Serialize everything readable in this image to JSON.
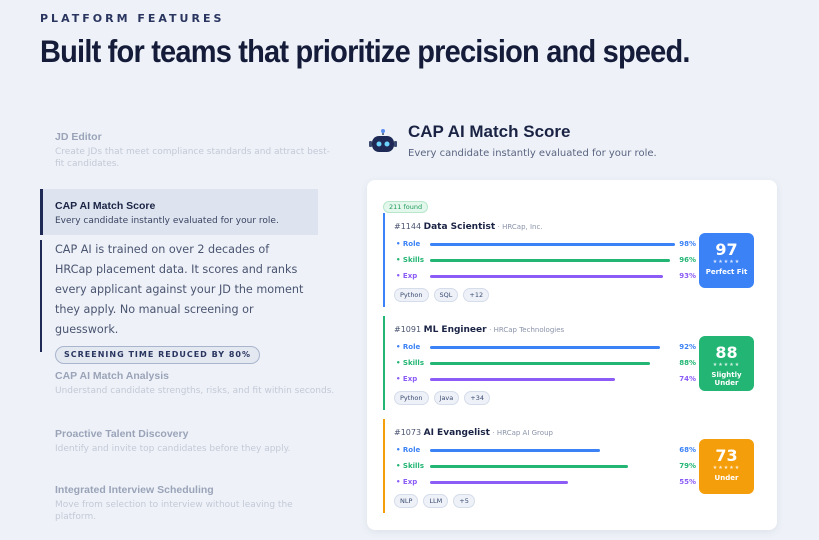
{
  "header": {
    "eyebrow": "PLATFORM FEATURES",
    "title": "Built for teams that prioritize precision and speed."
  },
  "features": [
    {
      "title": "JD Editor",
      "description": "Create JDs that meet compliance standards and attract best-fit candidates."
    },
    {
      "title": "CAP AI Match Score",
      "description": "Every candidate instantly evaluated for your role.",
      "detail": "CAP AI is trained on over 2 decades of HRCap placement data. It scores and ranks every applicant against your JD the moment they apply. No manual screening or guesswork.",
      "badge": "SCREENING TIME REDUCED BY 80%"
    },
    {
      "title": "CAP AI Match Analysis",
      "description": "Understand candidate strengths, risks, and fit within seconds."
    },
    {
      "title": "Proactive Talent Discovery",
      "description": "Identify and invite top candidates before they apply."
    },
    {
      "title": "Integrated Interview Scheduling",
      "description": "Move from selection to interview without leaving the platform."
    }
  ],
  "panel": {
    "title": "CAP AI Match Score",
    "subtitle": "Every candidate instantly evaluated for your role.",
    "found": "211 found",
    "candidates": [
      {
        "id": "#1144",
        "role": "Data Scientist",
        "company": "· HRCap, Inc.",
        "rows": [
          {
            "label": "Role",
            "pct": "98%"
          },
          {
            "label": "Skills",
            "pct": "96%"
          },
          {
            "label": "Exp",
            "pct": "93%"
          }
        ],
        "tags": [
          "Python",
          "SQL",
          "+12"
        ],
        "score": "97",
        "verdict": "Perfect Fit"
      },
      {
        "id": "#1091",
        "role": "ML Engineer",
        "company": "· HRCap Technologies",
        "rows": [
          {
            "label": "Role",
            "pct": "92%"
          },
          {
            "label": "Skills",
            "pct": "88%"
          },
          {
            "label": "Exp",
            "pct": "74%"
          }
        ],
        "tags": [
          "Python",
          "Java",
          "+34"
        ],
        "score": "88",
        "verdict": "Slightly Under"
      },
      {
        "id": "#1073",
        "role": "AI Evangelist",
        "company": "· HRCap AI Group",
        "rows": [
          {
            "label": "Role",
            "pct": "68%"
          },
          {
            "label": "Skills",
            "pct": "79%"
          },
          {
            "label": "Exp",
            "pct": "55%"
          }
        ],
        "tags": [
          "NLP",
          "LLM",
          "+5"
        ],
        "score": "73",
        "verdict": "Under"
      }
    ]
  }
}
